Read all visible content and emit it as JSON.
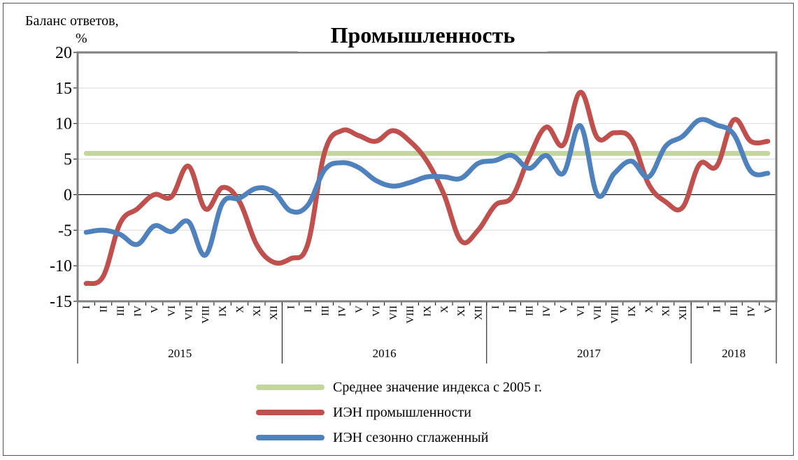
{
  "chart_data": {
    "type": "line",
    "title": "Промышленность",
    "ylabel": "Баланс ответов,",
    "yunit": "%",
    "ylim": [
      -15,
      20
    ],
    "yticks": [
      -15,
      -10,
      -5,
      0,
      5,
      10,
      15,
      20
    ],
    "months": [
      "I",
      "II",
      "III",
      "IV",
      "V",
      "VI",
      "VII",
      "VIII",
      "IX",
      "X",
      "XI",
      "XII",
      "I",
      "II",
      "III",
      "IV",
      "V",
      "VI",
      "VII",
      "VIII",
      "IX",
      "X",
      "XI",
      "XII",
      "I",
      "II",
      "III",
      "IV",
      "V",
      "VI",
      "VII",
      "VIII",
      "IX",
      "X",
      "XI",
      "XII",
      "I",
      "II",
      "III",
      "IV",
      "V"
    ],
    "years": [
      {
        "label": "2015",
        "count": 12
      },
      {
        "label": "2016",
        "count": 12
      },
      {
        "label": "2017",
        "count": 12
      },
      {
        "label": "2018",
        "count": 5
      }
    ],
    "series": [
      {
        "name": "Среднее значение индекса с 2005 г.",
        "color": "#c3d69b",
        "values": [
          5.8,
          5.8,
          5.8,
          5.8,
          5.8,
          5.8,
          5.8,
          5.8,
          5.8,
          5.8,
          5.8,
          5.8,
          5.8,
          5.8,
          5.8,
          5.8,
          5.8,
          5.8,
          5.8,
          5.8,
          5.8,
          5.8,
          5.8,
          5.8,
          5.8,
          5.8,
          5.8,
          5.8,
          5.8,
          5.8,
          5.8,
          5.8,
          5.8,
          5.8,
          5.8,
          5.8,
          5.8,
          5.8,
          5.8,
          5.8,
          5.8
        ]
      },
      {
        "name": "ИЭН промышленности",
        "color": "#c0504d",
        "values": [
          -12.5,
          -11.5,
          -4.0,
          -2.0,
          0.0,
          -0.3,
          4.0,
          -2.0,
          1.0,
          -1.0,
          -7.0,
          -9.5,
          -9.0,
          -7.0,
          6.0,
          9.0,
          8.3,
          7.5,
          9.0,
          7.5,
          4.7,
          0.0,
          -6.5,
          -5.0,
          -1.5,
          -0.3,
          5.3,
          9.5,
          7.0,
          14.4,
          8.0,
          8.7,
          7.8,
          1.5,
          -1.0,
          -1.8,
          4.3,
          4.0,
          10.5,
          7.5,
          7.5
        ]
      },
      {
        "name": "ИЭН сезонно сглаженный",
        "color": "#4f81bd",
        "values": [
          -5.3,
          -5.0,
          -5.6,
          -7.0,
          -4.4,
          -5.2,
          -3.8,
          -8.5,
          -1.2,
          -0.5,
          0.9,
          0.4,
          -2.3,
          -1.5,
          3.5,
          4.5,
          3.8,
          2.0,
          1.2,
          1.7,
          2.5,
          2.5,
          2.3,
          4.4,
          4.8,
          5.5,
          3.7,
          5.5,
          3.0,
          9.7,
          0.0,
          3.0,
          4.7,
          2.5,
          6.8,
          8.2,
          10.5,
          9.8,
          8.5,
          3.3,
          3.0
        ]
      }
    ],
    "grid": true
  }
}
